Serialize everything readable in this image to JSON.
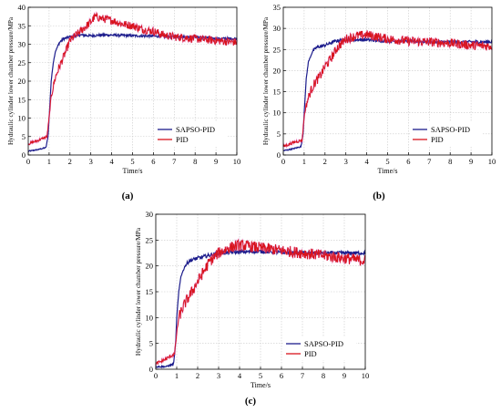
{
  "colors": {
    "sapso": "#1c1c8c",
    "pid": "#d8141c",
    "pid_noise": "#e05ad0",
    "grid": "#c9c9c9",
    "axis": "#000000"
  },
  "chart_data": [
    {
      "type": "line",
      "panel_label": "(a)",
      "ylabel": "Hydraulic cylinder lower chamber pressure/MPa",
      "xlabel": "Time/s",
      "xlim": [
        0,
        10
      ],
      "ylim": [
        0,
        40
      ],
      "xticks": [
        0,
        1,
        2,
        3,
        4,
        5,
        6,
        7,
        8,
        9,
        10
      ],
      "yticks": [
        0,
        5,
        10,
        15,
        20,
        25,
        30,
        35,
        40
      ],
      "grid": true,
      "legend_position": "lower-right",
      "series": [
        {
          "name": "SAPSO-PID",
          "x": [
            0,
            0.5,
            0.85,
            0.95,
            1.0,
            1.1,
            1.2,
            1.3,
            1.5,
            1.7,
            2.0,
            2.5,
            3.0,
            3.5,
            4.0,
            5.0,
            6.0,
            7.0,
            8.0,
            9.0,
            10.0
          ],
          "y": [
            1,
            1.5,
            2,
            5,
            10,
            20,
            25,
            28,
            30.5,
            31.5,
            32,
            32.5,
            32.3,
            32.5,
            32.5,
            32.3,
            32.2,
            32,
            32,
            31.5,
            31.5
          ]
        },
        {
          "name": "PID",
          "x": [
            0,
            0.5,
            0.9,
            1.0,
            1.1,
            1.3,
            1.5,
            1.8,
            2.0,
            2.5,
            3.0,
            3.2,
            3.5,
            4.0,
            4.5,
            5.0,
            5.5,
            6.0,
            6.5,
            7.0,
            8.0,
            9.0,
            10.0
          ],
          "y": [
            3,
            4,
            5,
            10,
            16,
            21,
            24,
            28,
            31,
            33.5,
            36,
            37.5,
            37,
            36.5,
            35.5,
            35,
            34,
            33.5,
            32.5,
            32,
            31.5,
            31,
            30.5
          ]
        }
      ]
    },
    {
      "type": "line",
      "panel_label": "(b)",
      "ylabel": "Hydraulic cylinder lower chamber pressure/MPa",
      "xlabel": "Time/s",
      "xlim": [
        0,
        10
      ],
      "ylim": [
        0,
        35
      ],
      "xticks": [
        0,
        1,
        2,
        3,
        4,
        5,
        6,
        7,
        8,
        9,
        10
      ],
      "yticks": [
        0,
        5,
        10,
        15,
        20,
        25,
        30,
        35
      ],
      "grid": true,
      "legend_position": "lower-right",
      "series": [
        {
          "name": "SAPSO-PID",
          "x": [
            0,
            0.5,
            0.85,
            0.95,
            1.0,
            1.1,
            1.2,
            1.4,
            1.6,
            2.0,
            2.5,
            3.0,
            4.0,
            5.0,
            6.0,
            7.0,
            8.0,
            9.0,
            10.0
          ],
          "y": [
            1,
            1.5,
            2,
            5,
            10,
            18,
            22,
            24.5,
            25.5,
            26,
            27,
            27.3,
            27.3,
            27,
            27,
            26.8,
            26.8,
            26.8,
            26.8
          ]
        },
        {
          "name": "PID",
          "x": [
            0,
            0.5,
            0.9,
            1.0,
            1.1,
            1.3,
            1.5,
            1.8,
            2.0,
            2.3,
            2.6,
            3.0,
            3.5,
            4.0,
            4.5,
            5.0,
            6.0,
            7.0,
            8.0,
            9.0,
            10.0
          ],
          "y": [
            2,
            3,
            3.5,
            9,
            12,
            15,
            17,
            19,
            21,
            23,
            25.5,
            27.5,
            28.2,
            28.5,
            28,
            27.5,
            27,
            26.8,
            26.5,
            26,
            25.8
          ]
        }
      ]
    },
    {
      "type": "line",
      "panel_label": "(c)",
      "ylabel": "Hydraulic cylinder lower chamber pressure/MPa",
      "xlabel": "Time/s",
      "xlim": [
        0,
        10
      ],
      "ylim": [
        0,
        30
      ],
      "xticks": [
        0,
        1,
        2,
        3,
        4,
        5,
        6,
        7,
        8,
        9,
        10
      ],
      "yticks": [
        0,
        5,
        10,
        15,
        20,
        25,
        30
      ],
      "grid": true,
      "legend_position": "lower-right",
      "series": [
        {
          "name": "SAPSO-PID",
          "x": [
            0,
            0.5,
            0.85,
            0.95,
            1.0,
            1.1,
            1.2,
            1.4,
            1.6,
            2.0,
            2.5,
            3.0,
            4.0,
            5.0,
            6.0,
            7.0,
            8.0,
            9.0,
            10.0
          ],
          "y": [
            0.5,
            0.5,
            1,
            5,
            10,
            15,
            18,
            20,
            21,
            21.5,
            22,
            22.5,
            22.7,
            22.8,
            22.6,
            22.5,
            22.5,
            22.5,
            22.5
          ]
        },
        {
          "name": "PID",
          "x": [
            0,
            0.5,
            0.9,
            1.0,
            1.1,
            1.3,
            1.5,
            1.8,
            2.0,
            2.3,
            2.6,
            3.0,
            3.5,
            4.0,
            4.5,
            5.0,
            6.0,
            7.0,
            8.0,
            9.0,
            10.0
          ],
          "y": [
            1,
            2,
            3,
            7,
            10,
            12,
            13.5,
            15.5,
            17,
            19,
            21,
            22.5,
            23.5,
            24,
            23.8,
            23.5,
            23,
            22.5,
            22,
            21.5,
            21
          ]
        }
      ]
    }
  ]
}
